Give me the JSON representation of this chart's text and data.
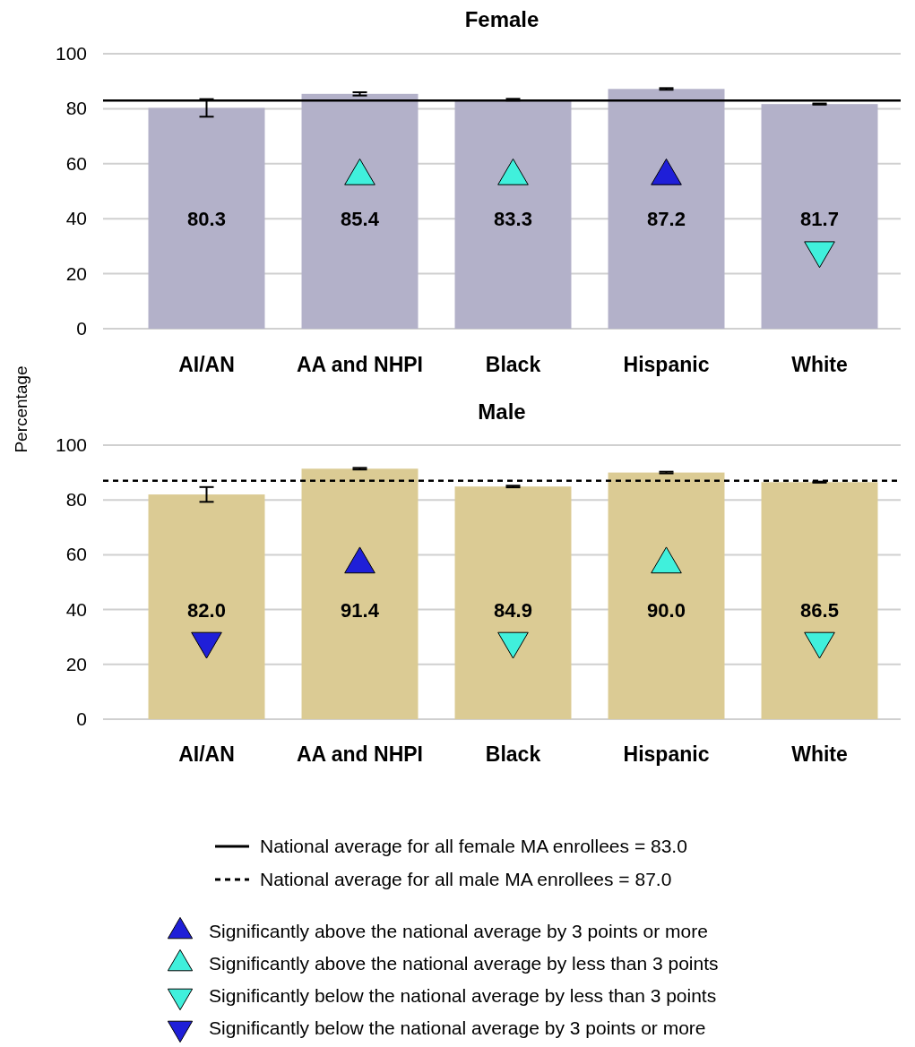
{
  "chart_data": [
    {
      "type": "bar",
      "title": "Female",
      "ylabel": "Percentage",
      "categories": [
        "AI/AN",
        "AA and NHPI",
        "Black",
        "Hispanic",
        "White"
      ],
      "ylim": [
        0,
        100
      ],
      "yticks": [
        0,
        20,
        40,
        60,
        80,
        100
      ],
      "grid": "y",
      "legend": "bottom",
      "series": [
        {
          "color": "#b3b1c9",
          "values": [
            80.3,
            85.4,
            83.3,
            87.2,
            81.7
          ],
          "value_labels": [
            "80.3",
            "85.4",
            "83.3",
            "87.2",
            "81.7"
          ],
          "errors": [
            3.2,
            0.6,
            0.3,
            0.3,
            0.2
          ]
        },
        {
          "type": "scatter",
          "marker": "triangle",
          "color": "#40f0dc",
          "x": [
            "AA and NHPI",
            "Black"
          ],
          "values": [
            55.5,
            55.5
          ]
        },
        {
          "type": "scatter",
          "marker": "triangle",
          "color": "#1f1fd8",
          "x": [
            "Hispanic"
          ],
          "values": [
            55.5
          ]
        },
        {
          "type": "scatter",
          "marker": "triangle",
          "color": "#40f0dc",
          "x": [
            "White"
          ],
          "values": [
            28.5
          ]
        }
      ],
      "ref_lines": [
        {
          "axis": "y",
          "value": 83.0,
          "label": "National average for all female MA enrollees = 83.0",
          "line_style": "solid",
          "color": "#000000"
        }
      ]
    },
    {
      "type": "bar",
      "title": "Male",
      "categories": [
        "AI/AN",
        "AA and NHPI",
        "Black",
        "Hispanic",
        "White"
      ],
      "ylim": [
        0,
        100
      ],
      "yticks": [
        0,
        20,
        40,
        60,
        80,
        100
      ],
      "grid": "y",
      "legend": "bottom",
      "series": [
        {
          "color": "#dbcb94",
          "values": [
            82.0,
            91.4,
            84.9,
            90.0,
            86.5
          ],
          "value_labels": [
            "82.0",
            "91.4",
            "84.9",
            "90.0",
            "86.5"
          ],
          "errors": [
            2.7,
            0.3,
            0.3,
            0.3,
            0.2
          ]
        },
        {
          "type": "scatter",
          "name": "Significantly above the national average by 3 points or more",
          "marker": "triangle",
          "color": "#1f1fd8",
          "x": [
            "AA and NHPI"
          ],
          "values": [
            56.5
          ]
        },
        {
          "type": "scatter",
          "name": "Significantly above the national average by less than 3 points",
          "marker": "triangle",
          "color": "#40f0dc",
          "x": [
            "Hispanic"
          ],
          "values": [
            56.5
          ]
        },
        {
          "type": "scatter",
          "name": "Significantly below the national average by less than 3 points",
          "marker": "triangle",
          "color": "#40f0dc",
          "x": [
            "Black",
            "White"
          ],
          "values": [
            28.5,
            28.5
          ]
        },
        {
          "type": "scatter",
          "name": "Significantly below the national average by 3 points or more",
          "marker": "triangle",
          "color": "#1f1fd8",
          "x": [
            "AI/AN"
          ],
          "values": [
            28.5
          ]
        }
      ],
      "ref_lines": [
        {
          "axis": "y",
          "value": 87.0,
          "label": "National average for all male MA enrollees = 87.0",
          "line_style": "dashed",
          "color": "#000000"
        }
      ]
    }
  ]
}
